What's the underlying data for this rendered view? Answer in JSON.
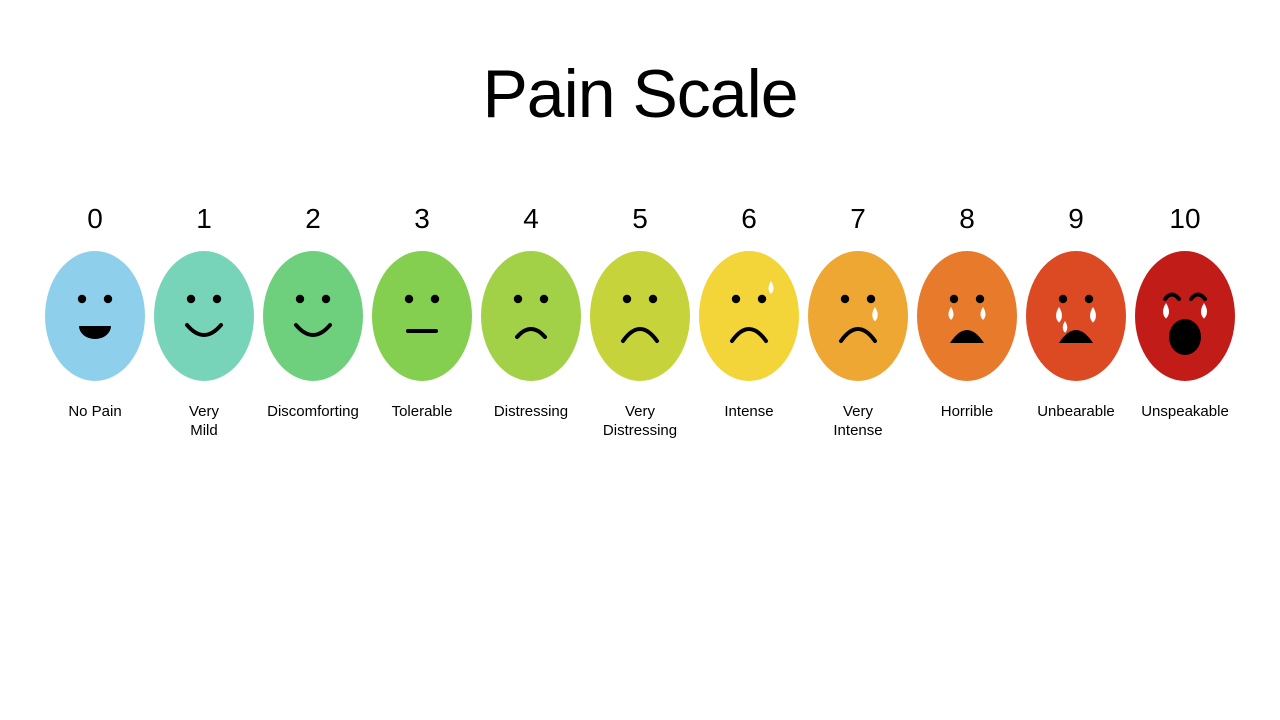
{
  "type": "infographic",
  "title": "Pain Scale",
  "title_fontsize": 68,
  "title_color": "#000000",
  "background_color": "#ffffff",
  "number_fontsize": 28,
  "label_fontsize": 15,
  "face_width": 100,
  "face_height": 130,
  "gap": 9,
  "items": [
    {
      "number": "0",
      "label": "No Pain",
      "color": "#8ed0ec",
      "face": "grin"
    },
    {
      "number": "1",
      "label": "Very\nMild",
      "color": "#78d4b8",
      "face": "smile"
    },
    {
      "number": "2",
      "label": "Discomforting",
      "color": "#6ed07d",
      "face": "smile"
    },
    {
      "number": "3",
      "label": "Tolerable",
      "color": "#84cf4f",
      "face": "neutral"
    },
    {
      "number": "4",
      "label": "Distressing",
      "color": "#a2d148",
      "face": "slight_frown"
    },
    {
      "number": "5",
      "label": "Very\nDistressing",
      "color": "#c6d33a",
      "face": "frown"
    },
    {
      "number": "6",
      "label": "Intense",
      "color": "#f3d439",
      "face": "frown_sweat"
    },
    {
      "number": "7",
      "label": "Very\nIntense",
      "color": "#eea733",
      "face": "frown_tear"
    },
    {
      "number": "8",
      "label": "Horrible",
      "color": "#e87b2b",
      "face": "open_mouth_tears"
    },
    {
      "number": "9",
      "label": "Unbearable",
      "color": "#dc4a24",
      "face": "open_mouth_tears_heavy"
    },
    {
      "number": "10",
      "label": "Unspeakable",
      "color": "#c21c19",
      "face": "scream"
    }
  ],
  "stroke_color": "#000000",
  "stroke_width": 4,
  "eye_radius": 4.2,
  "tear_color": "#ffffff"
}
